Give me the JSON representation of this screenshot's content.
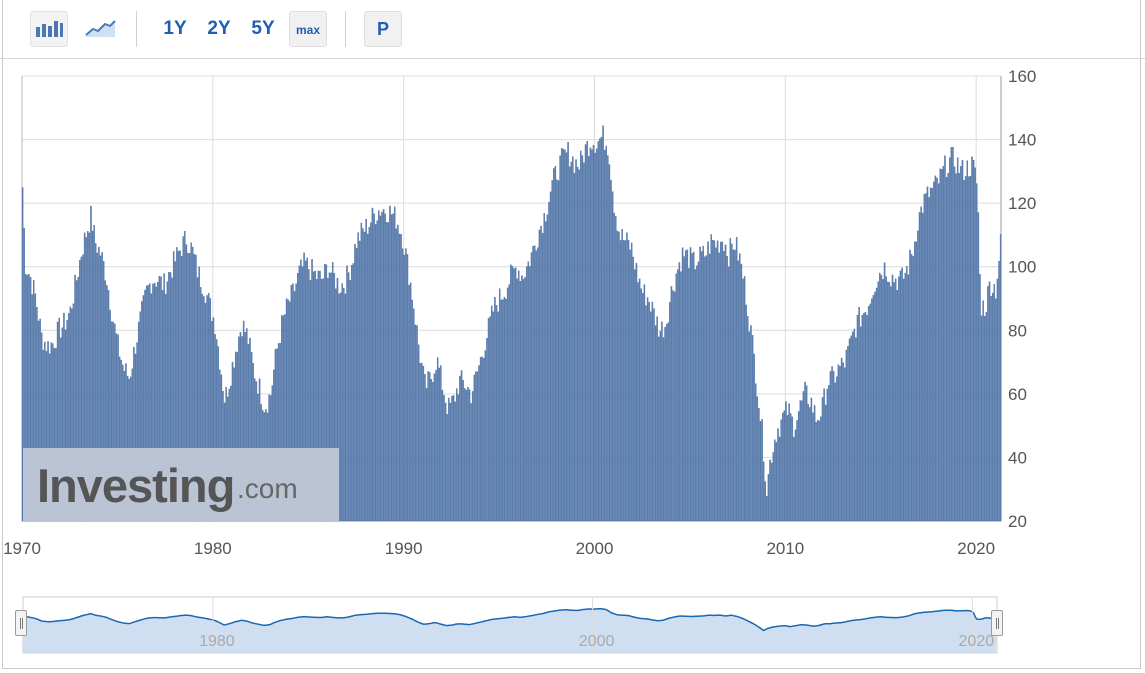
{
  "toolbar": {
    "chart_type_buttons": [
      {
        "name": "bar-chart-icon",
        "active": true
      },
      {
        "name": "line-chart-icon",
        "active": false
      }
    ],
    "ranges": [
      "1Y",
      "2Y",
      "5Y",
      "max"
    ],
    "selected_range": "max",
    "period_button": "P"
  },
  "watermark": {
    "brand": "Investing",
    "suffix": ".com"
  },
  "colors": {
    "bars": "#5b7fb0",
    "bar_edge": "#4a6c9d",
    "navigator_line": "#1a67b3",
    "navigator_fill": "#cfdff1",
    "grid": "#dcdcdc",
    "axis_text": "#555555"
  },
  "chart_data": {
    "type": "bar",
    "x_ticks": [
      "1970",
      "1980",
      "1990",
      "2000",
      "2010",
      "2020"
    ],
    "y_ticks": [
      "20",
      "40",
      "60",
      "80",
      "100",
      "120",
      "140",
      "160"
    ],
    "ylim": [
      20,
      160
    ],
    "xlim": [
      1970.0,
      2021.3
    ],
    "y_axis_position": "right",
    "grid": true,
    "anchors": [
      [
        1970.0,
        125
      ],
      [
        1970.15,
        101
      ],
      [
        1970.4,
        97
      ],
      [
        1970.7,
        90
      ],
      [
        1971.0,
        78
      ],
      [
        1971.3,
        75
      ],
      [
        1971.6,
        76
      ],
      [
        1971.9,
        80
      ],
      [
        1972.2,
        82
      ],
      [
        1972.5,
        86
      ],
      [
        1972.8,
        95
      ],
      [
        1973.1,
        105
      ],
      [
        1973.4,
        112
      ],
      [
        1973.6,
        116
      ],
      [
        1973.8,
        108
      ],
      [
        1974.1,
        104
      ],
      [
        1974.4,
        97
      ],
      [
        1974.7,
        85
      ],
      [
        1975.0,
        75
      ],
      [
        1975.3,
        68
      ],
      [
        1975.6,
        65
      ],
      [
        1975.9,
        75
      ],
      [
        1976.2,
        84
      ],
      [
        1976.5,
        92
      ],
      [
        1976.8,
        96
      ],
      [
        1977.1,
        96
      ],
      [
        1977.4,
        94
      ],
      [
        1977.7,
        98
      ],
      [
        1978.0,
        102
      ],
      [
        1978.3,
        106
      ],
      [
        1978.6,
        109
      ],
      [
        1978.9,
        105
      ],
      [
        1979.2,
        98
      ],
      [
        1979.5,
        94
      ],
      [
        1979.8,
        88
      ],
      [
        1980.1,
        82
      ],
      [
        1980.4,
        68
      ],
      [
        1980.6,
        58
      ],
      [
        1980.9,
        66
      ],
      [
        1981.2,
        75
      ],
      [
        1981.5,
        82
      ],
      [
        1981.8,
        78
      ],
      [
        1982.1,
        68
      ],
      [
        1982.4,
        62
      ],
      [
        1982.7,
        56
      ],
      [
        1983.0,
        60
      ],
      [
        1983.3,
        73
      ],
      [
        1983.6,
        82
      ],
      [
        1983.9,
        88
      ],
      [
        1984.2,
        92
      ],
      [
        1984.5,
        98
      ],
      [
        1984.8,
        101
      ],
      [
        1985.1,
        99
      ],
      [
        1985.4,
        97
      ],
      [
        1985.7,
        96
      ],
      [
        1986.0,
        100
      ],
      [
        1986.3,
        97
      ],
      [
        1986.6,
        94
      ],
      [
        1986.9,
        95
      ],
      [
        1987.2,
        100
      ],
      [
        1987.5,
        108
      ],
      [
        1987.8,
        111
      ],
      [
        1988.1,
        113
      ],
      [
        1988.4,
        116
      ],
      [
        1988.7,
        118
      ],
      [
        1989.0,
        118
      ],
      [
        1989.3,
        117
      ],
      [
        1989.6,
        115
      ],
      [
        1989.9,
        110
      ],
      [
        1990.2,
        100
      ],
      [
        1990.5,
        88
      ],
      [
        1990.8,
        73
      ],
      [
        1991.1,
        62
      ],
      [
        1991.4,
        65
      ],
      [
        1991.7,
        71
      ],
      [
        1992.0,
        63
      ],
      [
        1992.3,
        55
      ],
      [
        1992.6,
        58
      ],
      [
        1992.9,
        64
      ],
      [
        1993.2,
        63
      ],
      [
        1993.5,
        60
      ],
      [
        1993.8,
        66
      ],
      [
        1994.1,
        73
      ],
      [
        1994.4,
        80
      ],
      [
        1994.7,
        87
      ],
      [
        1995.0,
        90
      ],
      [
        1995.3,
        93
      ],
      [
        1995.6,
        97
      ],
      [
        1995.9,
        100
      ],
      [
        1996.2,
        97
      ],
      [
        1996.5,
        101
      ],
      [
        1996.8,
        106
      ],
      [
        1997.1,
        112
      ],
      [
        1997.4,
        117
      ],
      [
        1997.7,
        125
      ],
      [
        1998.0,
        130
      ],
      [
        1998.3,
        134
      ],
      [
        1998.6,
        136
      ],
      [
        1998.9,
        133
      ],
      [
        1999.2,
        132
      ],
      [
        1999.5,
        137
      ],
      [
        1999.8,
        140
      ],
      [
        2000.1,
        139
      ],
      [
        2000.4,
        141
      ],
      [
        2000.7,
        138
      ],
      [
        2001.0,
        120
      ],
      [
        2001.3,
        110
      ],
      [
        2001.6,
        108
      ],
      [
        2001.9,
        106
      ],
      [
        2002.2,
        98
      ],
      [
        2002.5,
        92
      ],
      [
        2002.8,
        90
      ],
      [
        2003.1,
        85
      ],
      [
        2003.4,
        80
      ],
      [
        2003.7,
        82
      ],
      [
        2004.0,
        92
      ],
      [
        2004.3,
        99
      ],
      [
        2004.6,
        104
      ],
      [
        2004.9,
        103
      ],
      [
        2005.2,
        101
      ],
      [
        2005.5,
        103
      ],
      [
        2005.8,
        104
      ],
      [
        2006.1,
        108
      ],
      [
        2006.4,
        107
      ],
      [
        2006.7,
        109
      ],
      [
        2007.0,
        104
      ],
      [
        2007.3,
        108
      ],
      [
        2007.6,
        102
      ],
      [
        2007.9,
        92
      ],
      [
        2008.2,
        78
      ],
      [
        2008.5,
        63
      ],
      [
        2008.8,
        45
      ],
      [
        2009.0,
        30
      ],
      [
        2009.2,
        40
      ],
      [
        2009.5,
        48
      ],
      [
        2009.8,
        52
      ],
      [
        2010.1,
        55
      ],
      [
        2010.4,
        50
      ],
      [
        2010.7,
        55
      ],
      [
        2011.0,
        60
      ],
      [
        2011.3,
        58
      ],
      [
        2011.6,
        52
      ],
      [
        2011.9,
        55
      ],
      [
        2012.2,
        64
      ],
      [
        2012.5,
        65
      ],
      [
        2012.8,
        68
      ],
      [
        2013.1,
        70
      ],
      [
        2013.4,
        76
      ],
      [
        2013.7,
        82
      ],
      [
        2014.0,
        85
      ],
      [
        2014.3,
        88
      ],
      [
        2014.6,
        94
      ],
      [
        2014.9,
        98
      ],
      [
        2015.2,
        100
      ],
      [
        2015.5,
        97
      ],
      [
        2015.8,
        96
      ],
      [
        2016.1,
        96
      ],
      [
        2016.4,
        100
      ],
      [
        2016.7,
        106
      ],
      [
        2016.9,
        114
      ],
      [
        2017.2,
        120
      ],
      [
        2017.5,
        123
      ],
      [
        2017.8,
        125
      ],
      [
        2018.1,
        128
      ],
      [
        2018.4,
        132
      ],
      [
        2018.7,
        134
      ],
      [
        2018.9,
        133
      ],
      [
        2019.2,
        130
      ],
      [
        2019.5,
        131
      ],
      [
        2019.8,
        132
      ],
      [
        2020.05,
        125
      ],
      [
        2020.2,
        88
      ],
      [
        2020.45,
        87
      ],
      [
        2020.7,
        95
      ],
      [
        2021.0,
        93
      ],
      [
        2021.25,
        107
      ]
    ],
    "navigator": {
      "x_ticks": [
        "1980",
        "2000",
        "2020"
      ]
    }
  }
}
